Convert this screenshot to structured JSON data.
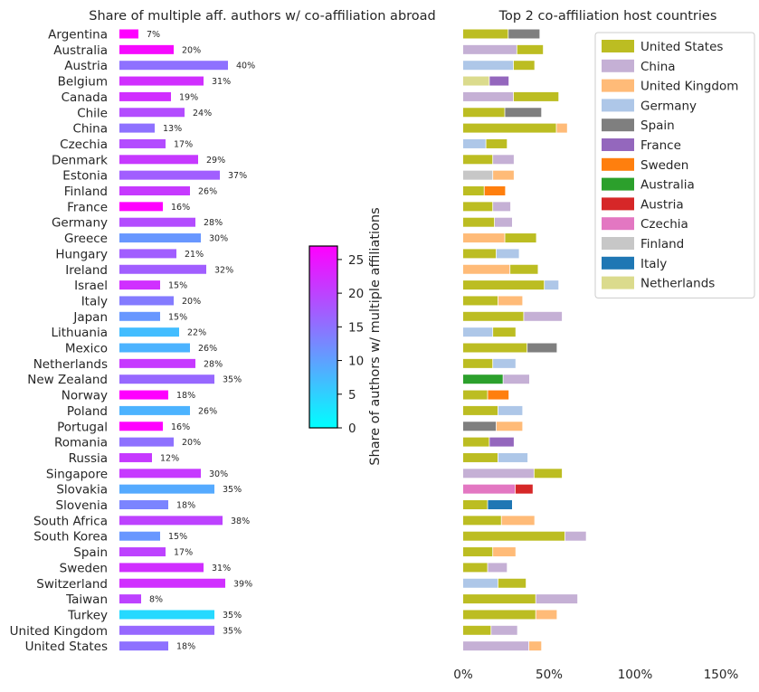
{
  "colors": {
    "United States": "#bcbd22",
    "China": "#c5b0d5",
    "United Kingdom": "#ffbb78",
    "Germany": "#aec7e8",
    "Spain": "#7f7f7f",
    "France": "#9467bd",
    "Sweden": "#ff7f0e",
    "Australia": "#2ca02c",
    "Austria": "#d62728",
    "Czechia": "#e377c2",
    "Finland": "#c7c7c7",
    "Italy": "#1f77b4",
    "Netherlands": "#dbdb8d"
  },
  "colormap": [
    "#00ffff",
    "#ff00ff"
  ],
  "chart_data": [
    {
      "type": "bar",
      "orientation": "horizontal",
      "title": "Share of multiple aff. authors w/ co-affiliation abroad",
      "colorbar": {
        "label": "Share of authors w/ multiple affiliations",
        "ticks": [
          0,
          5,
          10,
          15,
          20,
          25
        ],
        "range": [
          0,
          27
        ]
      },
      "rows": [
        {
          "country": "Argentina",
          "value": 7,
          "label": "7%",
          "color_value": 27
        },
        {
          "country": "Australia",
          "value": 20,
          "label": "20%",
          "color_value": 26
        },
        {
          "country": "Austria",
          "value": 40,
          "label": "40%",
          "color_value": 15
        },
        {
          "country": "Belgium",
          "value": 31,
          "label": "31%",
          "color_value": 22
        },
        {
          "country": "Canada",
          "value": 19,
          "label": "19%",
          "color_value": 22
        },
        {
          "country": "Chile",
          "value": 24,
          "label": "24%",
          "color_value": 19
        },
        {
          "country": "China",
          "value": 13,
          "label": "13%",
          "color_value": 15
        },
        {
          "country": "Czechia",
          "value": 17,
          "label": "17%",
          "color_value": 19
        },
        {
          "country": "Denmark",
          "value": 29,
          "label": "29%",
          "color_value": 21
        },
        {
          "country": "Estonia",
          "value": 37,
          "label": "37%",
          "color_value": 17
        },
        {
          "country": "Finland",
          "value": 26,
          "label": "26%",
          "color_value": 21
        },
        {
          "country": "France",
          "value": 16,
          "label": "16%",
          "color_value": 27
        },
        {
          "country": "Germany",
          "value": 28,
          "label": "28%",
          "color_value": 19
        },
        {
          "country": "Greece",
          "value": 30,
          "label": "30%",
          "color_value": 11
        },
        {
          "country": "Hungary",
          "value": 21,
          "label": "21%",
          "color_value": 17
        },
        {
          "country": "Ireland",
          "value": 32,
          "label": "32%",
          "color_value": 17
        },
        {
          "country": "Israel",
          "value": 15,
          "label": "15%",
          "color_value": 22
        },
        {
          "country": "Italy",
          "value": 20,
          "label": "20%",
          "color_value": 14
        },
        {
          "country": "Japan",
          "value": 15,
          "label": "15%",
          "color_value": 11
        },
        {
          "country": "Lithuania",
          "value": 22,
          "label": "22%",
          "color_value": 7
        },
        {
          "country": "Mexico",
          "value": 26,
          "label": "26%",
          "color_value": 8
        },
        {
          "country": "Netherlands",
          "value": 28,
          "label": "28%",
          "color_value": 21
        },
        {
          "country": "New Zealand",
          "value": 35,
          "label": "35%",
          "color_value": 16
        },
        {
          "country": "Norway",
          "value": 18,
          "label": "18%",
          "color_value": 27
        },
        {
          "country": "Poland",
          "value": 26,
          "label": "26%",
          "color_value": 8
        },
        {
          "country": "Portugal",
          "value": 16,
          "label": "16%",
          "color_value": 27
        },
        {
          "country": "Romania",
          "value": 20,
          "label": "20%",
          "color_value": 15
        },
        {
          "country": "Russia",
          "value": 12,
          "label": "12%",
          "color_value": 21
        },
        {
          "country": "Singapore",
          "value": 30,
          "label": "30%",
          "color_value": 21
        },
        {
          "country": "Slovakia",
          "value": 35,
          "label": "35%",
          "color_value": 9
        },
        {
          "country": "Slovenia",
          "value": 18,
          "label": "18%",
          "color_value": 13
        },
        {
          "country": "South Africa",
          "value": 38,
          "label": "38%",
          "color_value": 20
        },
        {
          "country": "South Korea",
          "value": 15,
          "label": "15%",
          "color_value": 11
        },
        {
          "country": "Spain",
          "value": 17,
          "label": "17%",
          "color_value": 20
        },
        {
          "country": "Sweden",
          "value": 31,
          "label": "31%",
          "color_value": 22
        },
        {
          "country": "Switzerland",
          "value": 39,
          "label": "39%",
          "color_value": 22
        },
        {
          "country": "Taiwan",
          "value": 8,
          "label": "8%",
          "color_value": 20
        },
        {
          "country": "Turkey",
          "value": 35,
          "label": "35%",
          "color_value": 4
        },
        {
          "country": "United Kingdom",
          "value": 35,
          "label": "35%",
          "color_value": 16
        },
        {
          "country": "United States",
          "value": 18,
          "label": "18%",
          "color_value": 15
        }
      ]
    },
    {
      "type": "bar",
      "stacked": true,
      "orientation": "horizontal",
      "title": "Top 2 co-affiliation host countries",
      "xticks": [
        "0%",
        "50%",
        "100%",
        "150%"
      ],
      "xlim": [
        0,
        150
      ],
      "legend_position": "top-right",
      "legend": [
        "United States",
        "China",
        "United Kingdom",
        "Germany",
        "Spain",
        "France",
        "Sweden",
        "Australia",
        "Austria",
        "Czechia",
        "Finland",
        "Italy",
        "Netherlands"
      ],
      "rows": [
        {
          "country": "Argentina",
          "segments": [
            {
              "host": "United States",
              "value": 26
            },
            {
              "host": "Spain",
              "value": 18
            }
          ]
        },
        {
          "country": "Australia",
          "segments": [
            {
              "host": "China",
              "value": 31
            },
            {
              "host": "United States",
              "value": 15
            }
          ]
        },
        {
          "country": "Austria",
          "segments": [
            {
              "host": "Germany",
              "value": 29
            },
            {
              "host": "United States",
              "value": 12
            }
          ]
        },
        {
          "country": "Belgium",
          "segments": [
            {
              "host": "Netherlands",
              "value": 15
            },
            {
              "host": "France",
              "value": 11
            }
          ]
        },
        {
          "country": "Canada",
          "segments": [
            {
              "host": "China",
              "value": 29
            },
            {
              "host": "United States",
              "value": 26
            }
          ]
        },
        {
          "country": "Chile",
          "segments": [
            {
              "host": "United States",
              "value": 24
            },
            {
              "host": "Spain",
              "value": 21
            }
          ]
        },
        {
          "country": "China",
          "segments": [
            {
              "host": "United States",
              "value": 54
            },
            {
              "host": "United Kingdom",
              "value": 6
            }
          ]
        },
        {
          "country": "Czechia",
          "segments": [
            {
              "host": "Germany",
              "value": 13
            },
            {
              "host": "United States",
              "value": 12
            }
          ]
        },
        {
          "country": "Denmark",
          "segments": [
            {
              "host": "United States",
              "value": 17
            },
            {
              "host": "China",
              "value": 12
            }
          ]
        },
        {
          "country": "Estonia",
          "segments": [
            {
              "host": "Finland",
              "value": 17
            },
            {
              "host": "United Kingdom",
              "value": 12
            }
          ]
        },
        {
          "country": "Finland",
          "segments": [
            {
              "host": "United States",
              "value": 12
            },
            {
              "host": "Sweden",
              "value": 12
            }
          ]
        },
        {
          "country": "France",
          "segments": [
            {
              "host": "United States",
              "value": 17
            },
            {
              "host": "China",
              "value": 10
            }
          ]
        },
        {
          "country": "Germany",
          "segments": [
            {
              "host": "United States",
              "value": 18
            },
            {
              "host": "China",
              "value": 10
            }
          ]
        },
        {
          "country": "Greece",
          "segments": [
            {
              "host": "United Kingdom",
              "value": 24
            },
            {
              "host": "United States",
              "value": 18
            }
          ]
        },
        {
          "country": "Hungary",
          "segments": [
            {
              "host": "United States",
              "value": 19
            },
            {
              "host": "Germany",
              "value": 13
            }
          ]
        },
        {
          "country": "Ireland",
          "segments": [
            {
              "host": "United Kingdom",
              "value": 27
            },
            {
              "host": "United States",
              "value": 16
            }
          ]
        },
        {
          "country": "Israel",
          "segments": [
            {
              "host": "United States",
              "value": 47
            },
            {
              "host": "Germany",
              "value": 8
            }
          ]
        },
        {
          "country": "Italy",
          "segments": [
            {
              "host": "United States",
              "value": 20
            },
            {
              "host": "United Kingdom",
              "value": 14
            }
          ]
        },
        {
          "country": "Japan",
          "segments": [
            {
              "host": "United States",
              "value": 35
            },
            {
              "host": "China",
              "value": 22
            }
          ]
        },
        {
          "country": "Lithuania",
          "segments": [
            {
              "host": "Germany",
              "value": 17
            },
            {
              "host": "United States",
              "value": 13
            }
          ]
        },
        {
          "country": "Mexico",
          "segments": [
            {
              "host": "United States",
              "value": 37
            },
            {
              "host": "Spain",
              "value": 17
            }
          ]
        },
        {
          "country": "Netherlands",
          "segments": [
            {
              "host": "United States",
              "value": 17
            },
            {
              "host": "Germany",
              "value": 13
            }
          ]
        },
        {
          "country": "New Zealand",
          "segments": [
            {
              "host": "Australia",
              "value": 23
            },
            {
              "host": "China",
              "value": 15
            }
          ]
        },
        {
          "country": "Norway",
          "segments": [
            {
              "host": "United States",
              "value": 14
            },
            {
              "host": "Sweden",
              "value": 12
            }
          ]
        },
        {
          "country": "Poland",
          "segments": [
            {
              "host": "United States",
              "value": 20
            },
            {
              "host": "Germany",
              "value": 14
            }
          ]
        },
        {
          "country": "Portugal",
          "segments": [
            {
              "host": "Spain",
              "value": 19
            },
            {
              "host": "United Kingdom",
              "value": 15
            }
          ]
        },
        {
          "country": "Romania",
          "segments": [
            {
              "host": "United States",
              "value": 15
            },
            {
              "host": "France",
              "value": 14
            }
          ]
        },
        {
          "country": "Russia",
          "segments": [
            {
              "host": "United States",
              "value": 20
            },
            {
              "host": "Germany",
              "value": 17
            }
          ]
        },
        {
          "country": "Singapore",
          "segments": [
            {
              "host": "China",
              "value": 41
            },
            {
              "host": "United States",
              "value": 16
            }
          ]
        },
        {
          "country": "Slovakia",
          "segments": [
            {
              "host": "Czechia",
              "value": 30
            },
            {
              "host": "Austria",
              "value": 10
            }
          ]
        },
        {
          "country": "Slovenia",
          "segments": [
            {
              "host": "United States",
              "value": 14
            },
            {
              "host": "Italy",
              "value": 14
            }
          ]
        },
        {
          "country": "South Africa",
          "segments": [
            {
              "host": "United States",
              "value": 22
            },
            {
              "host": "United Kingdom",
              "value": 19
            }
          ]
        },
        {
          "country": "South Korea",
          "segments": [
            {
              "host": "United States",
              "value": 59
            },
            {
              "host": "China",
              "value": 12
            }
          ]
        },
        {
          "country": "Spain",
          "segments": [
            {
              "host": "United States",
              "value": 17
            },
            {
              "host": "United Kingdom",
              "value": 13
            }
          ]
        },
        {
          "country": "Sweden",
          "segments": [
            {
              "host": "United States",
              "value": 14
            },
            {
              "host": "China",
              "value": 11
            }
          ]
        },
        {
          "country": "Switzerland",
          "segments": [
            {
              "host": "Germany",
              "value": 20
            },
            {
              "host": "United States",
              "value": 16
            }
          ]
        },
        {
          "country": "Taiwan",
          "segments": [
            {
              "host": "United States",
              "value": 42
            },
            {
              "host": "China",
              "value": 24
            }
          ]
        },
        {
          "country": "Turkey",
          "segments": [
            {
              "host": "United States",
              "value": 42
            },
            {
              "host": "United Kingdom",
              "value": 12
            }
          ]
        },
        {
          "country": "United Kingdom",
          "segments": [
            {
              "host": "United States",
              "value": 16
            },
            {
              "host": "China",
              "value": 15
            }
          ]
        },
        {
          "country": "United States",
          "segments": [
            {
              "host": "China",
              "value": 38
            },
            {
              "host": "United Kingdom",
              "value": 7
            }
          ]
        }
      ]
    }
  ]
}
